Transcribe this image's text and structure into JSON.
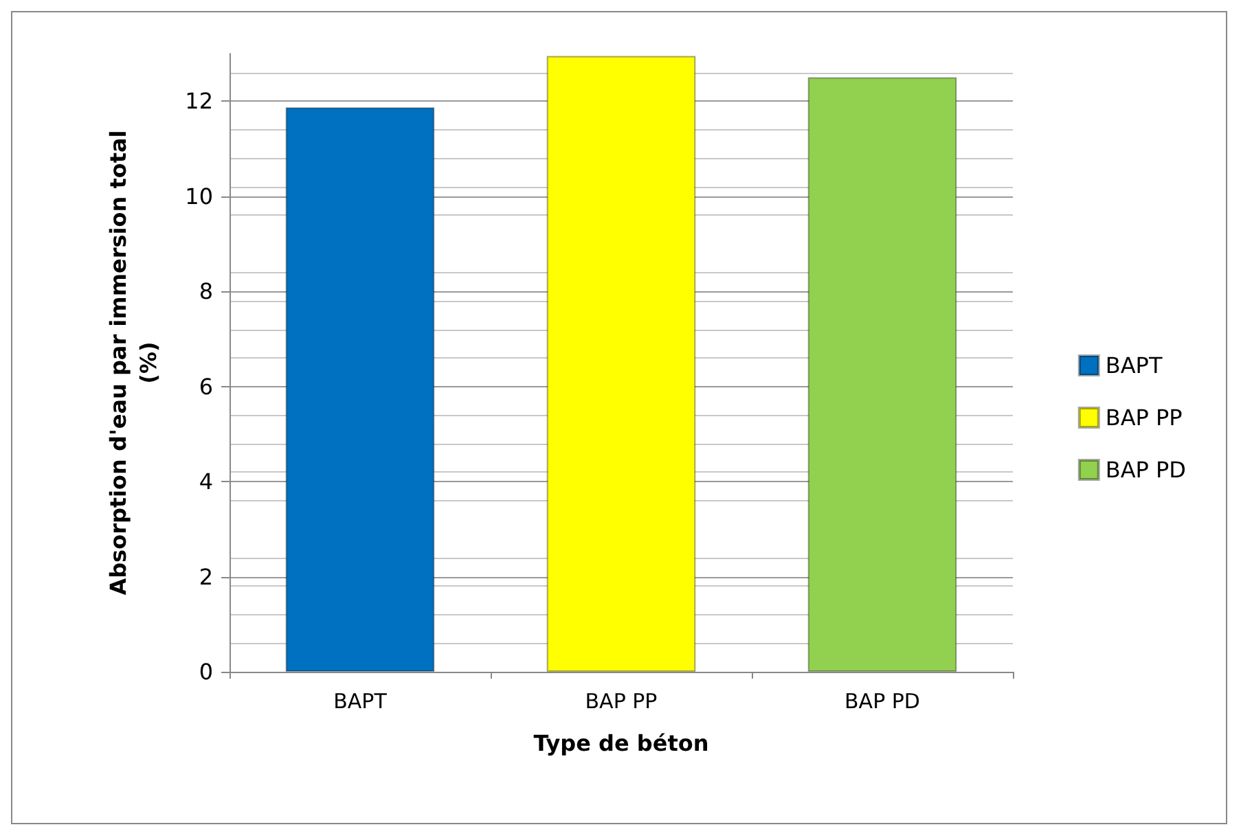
{
  "chart_data": {
    "type": "bar",
    "xlabel": "Type de béton",
    "ylabel": "Absorption d'eau par immersion total\n(%)",
    "categories": [
      "BAPT",
      "BAP PP",
      "BAP PD"
    ],
    "series": [
      {
        "name": "BAPT",
        "color": "#0070c0",
        "values": [
          11.87,
          null,
          null
        ]
      },
      {
        "name": "BAP PP",
        "color": "#ffff00",
        "values": [
          null,
          12.95,
          null
        ]
      },
      {
        "name": "BAP PD",
        "color": "#92d050",
        "values": [
          null,
          null,
          12.5
        ]
      }
    ],
    "stacked": true,
    "ylim": [
      0,
      13
    ],
    "yticks": [
      0,
      2,
      4,
      6,
      8,
      10,
      12
    ],
    "grid": true,
    "legend": "right"
  }
}
